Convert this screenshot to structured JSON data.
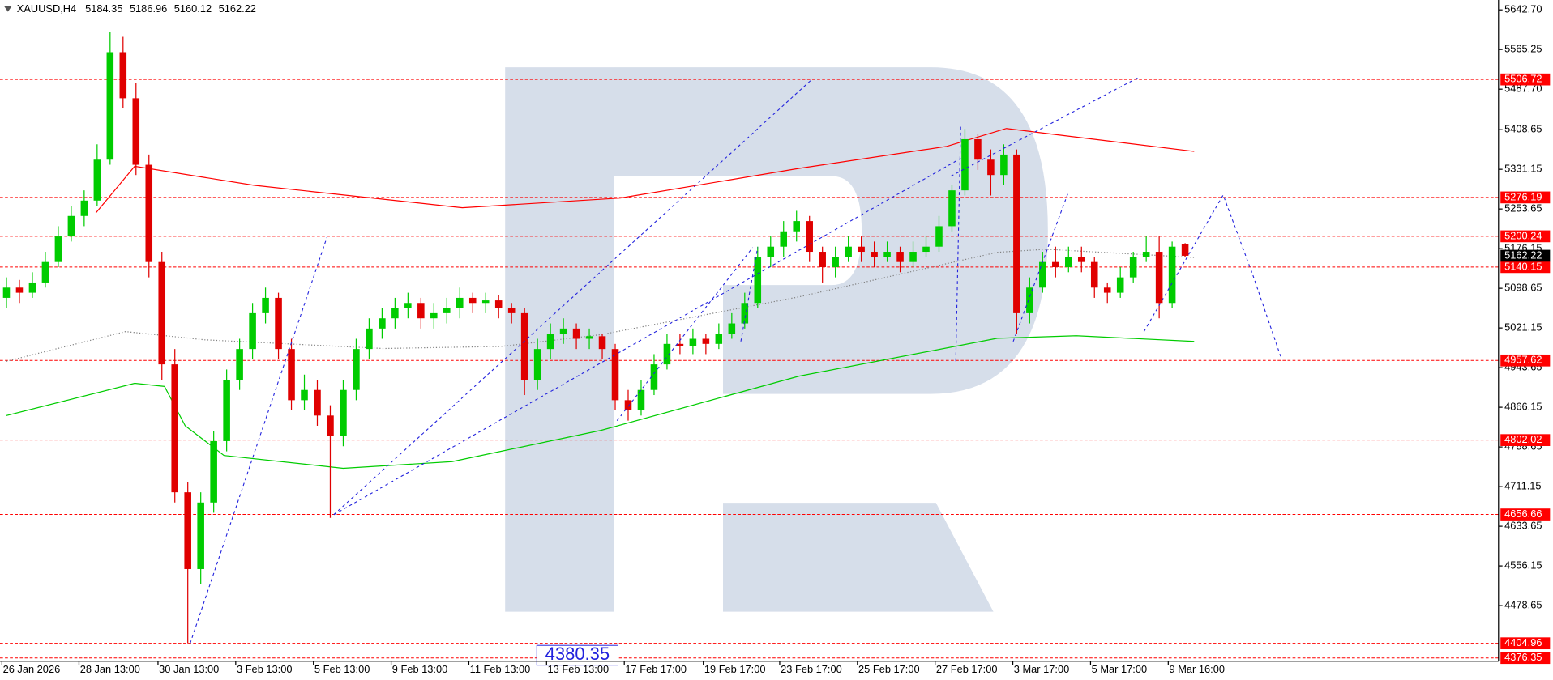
{
  "chart_data": {
    "type": "candlestick",
    "symbol": "XAUUSD,H4",
    "bull_color": "#00cc00",
    "bear_color": "#e00000",
    "candles": [
      [
        5080,
        5120,
        5060,
        5100
      ],
      [
        5100,
        5115,
        5070,
        5090
      ],
      [
        5090,
        5130,
        5080,
        5110
      ],
      [
        5110,
        5170,
        5100,
        5150
      ],
      [
        5150,
        5220,
        5140,
        5200
      ],
      [
        5200,
        5260,
        5190,
        5240
      ],
      [
        5240,
        5290,
        5220,
        5270
      ],
      [
        5270,
        5380,
        5260,
        5350
      ],
      [
        5350,
        5600,
        5340,
        5560
      ],
      [
        5560,
        5590,
        5450,
        5470
      ],
      [
        5470,
        5500,
        5320,
        5340
      ],
      [
        5340,
        5360,
        5120,
        5150
      ],
      [
        5150,
        5170,
        4920,
        4950
      ],
      [
        4950,
        4980,
        4680,
        4700
      ],
      [
        4700,
        4720,
        4405,
        4550
      ],
      [
        4550,
        4700,
        4520,
        4680
      ],
      [
        4680,
        4820,
        4660,
        4800
      ],
      [
        4800,
        4940,
        4780,
        4920
      ],
      [
        4920,
        5000,
        4900,
        4980
      ],
      [
        4980,
        5070,
        4960,
        5050
      ],
      [
        5050,
        5100,
        5030,
        5080
      ],
      [
        5080,
        5090,
        4960,
        4980
      ],
      [
        4980,
        5000,
        4860,
        4880
      ],
      [
        4880,
        4930,
        4860,
        4900
      ],
      [
        4900,
        4920,
        4830,
        4850
      ],
      [
        4850,
        4870,
        4650,
        4810
      ],
      [
        4810,
        4920,
        4790,
        4900
      ],
      [
        4900,
        5000,
        4880,
        4980
      ],
      [
        4980,
        5040,
        4960,
        5020
      ],
      [
        5020,
        5060,
        5000,
        5040
      ],
      [
        5040,
        5080,
        5020,
        5060
      ],
      [
        5060,
        5090,
        5040,
        5070
      ],
      [
        5070,
        5080,
        5020,
        5040
      ],
      [
        5040,
        5070,
        5020,
        5050
      ],
      [
        5050,
        5080,
        5030,
        5060
      ],
      [
        5060,
        5100,
        5040,
        5080
      ],
      [
        5080,
        5090,
        5050,
        5070
      ],
      [
        5070,
        5090,
        5050,
        5075
      ],
      [
        5075,
        5085,
        5040,
        5060
      ],
      [
        5060,
        5070,
        5030,
        5050
      ],
      [
        5050,
        5060,
        4890,
        4920
      ],
      [
        4920,
        5000,
        4900,
        4980
      ],
      [
        4980,
        5030,
        4960,
        5010
      ],
      [
        5010,
        5040,
        4990,
        5020
      ],
      [
        5020,
        5030,
        4980,
        5000
      ],
      [
        5000,
        5020,
        4980,
        5005
      ],
      [
        5005,
        5010,
        4960,
        4980
      ],
      [
        4980,
        4990,
        4860,
        4880
      ],
      [
        4880,
        4900,
        4840,
        4860
      ],
      [
        4860,
        4920,
        4850,
        4900
      ],
      [
        4900,
        4970,
        4890,
        4950
      ],
      [
        4950,
        5010,
        4940,
        4990
      ],
      [
        4990,
        5010,
        4970,
        4985
      ],
      [
        4985,
        5020,
        4970,
        5000
      ],
      [
        5000,
        5010,
        4970,
        4990
      ],
      [
        4990,
        5030,
        4980,
        5010
      ],
      [
        5010,
        5050,
        5000,
        5030
      ],
      [
        5030,
        5090,
        5020,
        5070
      ],
      [
        5070,
        5180,
        5060,
        5160
      ],
      [
        5160,
        5200,
        5140,
        5180
      ],
      [
        5180,
        5230,
        5160,
        5210
      ],
      [
        5210,
        5250,
        5190,
        5230
      ],
      [
        5230,
        5240,
        5150,
        5170
      ],
      [
        5170,
        5180,
        5110,
        5140
      ],
      [
        5140,
        5180,
        5120,
        5160
      ],
      [
        5160,
        5200,
        5150,
        5180
      ],
      [
        5180,
        5200,
        5150,
        5170
      ],
      [
        5170,
        5190,
        5140,
        5160
      ],
      [
        5160,
        5190,
        5150,
        5170
      ],
      [
        5170,
        5180,
        5130,
        5150
      ],
      [
        5150,
        5190,
        5140,
        5170
      ],
      [
        5170,
        5200,
        5160,
        5180
      ],
      [
        5180,
        5240,
        5170,
        5220
      ],
      [
        5220,
        5300,
        5210,
        5290
      ],
      [
        5290,
        5410,
        5280,
        5390
      ],
      [
        5390,
        5400,
        5330,
        5350
      ],
      [
        5350,
        5370,
        5280,
        5320
      ],
      [
        5320,
        5380,
        5300,
        5360
      ],
      [
        5360,
        5370,
        5010,
        5050
      ],
      [
        5050,
        5120,
        5030,
        5100
      ],
      [
        5100,
        5170,
        5090,
        5150
      ],
      [
        5150,
        5180,
        5120,
        5140
      ],
      [
        5140,
        5180,
        5130,
        5160
      ],
      [
        5160,
        5180,
        5130,
        5150
      ],
      [
        5150,
        5160,
        5080,
        5100
      ],
      [
        5100,
        5110,
        5070,
        5090
      ],
      [
        5090,
        5140,
        5080,
        5120
      ],
      [
        5120,
        5170,
        5110,
        5160
      ],
      [
        5160,
        5200,
        5150,
        5170
      ],
      [
        5170,
        5200,
        5040,
        5070
      ],
      [
        5070,
        5190,
        5060,
        5180
      ],
      [
        5184.35,
        5186.96,
        5160.12,
        5162.22
      ]
    ],
    "overlays": [
      {
        "color": "#ff0000",
        "style": "solid",
        "x": [
          6.9,
          9.9,
          19.1,
          35.2,
          47.4,
          61.2,
          72.6,
          77.2,
          81.0,
          91.7
        ],
        "values": [
          5246,
          5337,
          5300,
          5256,
          5275,
          5333,
          5376,
          5411,
          5399,
          5366
        ]
      },
      {
        "color": "#00cc00",
        "style": "solid",
        "x": [
          0,
          9.9,
          12.2,
          13.8,
          16.8,
          26,
          34.4,
          45.9,
          61.2,
          76.5,
          82.6,
          91.7
        ],
        "values": [
          4850,
          4913,
          4907,
          4830,
          4772,
          4747,
          4760,
          4821,
          4927,
          5001,
          5006,
          4995
        ]
      },
      {
        "color": "#808080",
        "style": "dotted",
        "x": [
          0,
          9.2,
          15.3,
          29.1,
          38.2,
          45.9,
          61.2,
          76.5,
          80.3,
          91.7
        ],
        "values": [
          4956,
          5014,
          4998,
          4981,
          4985,
          5008,
          5082,
          5169,
          5175,
          5159
        ]
      }
    ],
    "xlim": [
      -0.5,
      115.2
    ],
    "ylim": [
      4370,
      5662
    ],
    "yticks": [
      {
        "value": 5642.7,
        "label": "5642.70"
      },
      5565.25,
      {
        "value": 5487.7,
        "label": "5487.70"
      },
      5408.65,
      5331.15,
      5253.65,
      5176.15,
      5098.65,
      5021.15,
      4943.65,
      4866.15,
      4788.65,
      4711.15,
      4633.65,
      4556.15,
      4478.65
    ],
    "xticks": [
      {
        "value": -0.35,
        "label": "26 Jan 2026"
      },
      {
        "value": 5.6,
        "label": "28 Jan 13:00"
      },
      {
        "value": 11.7,
        "label": "30 Jan 13:00"
      },
      {
        "value": 17.7,
        "label": "3 Feb 13:00"
      },
      {
        "value": 23.7,
        "label": "5 Feb 13:00"
      },
      {
        "value": 29.7,
        "label": "9 Feb 13:00"
      },
      {
        "value": 35.7,
        "label": "11 Feb 13:00"
      },
      {
        "value": 41.7,
        "label": "13 Feb 13:00"
      },
      {
        "value": 47.7,
        "label": "17 Feb 17:00"
      },
      {
        "value": 53.8,
        "label": "19 Feb 17:00"
      },
      {
        "value": 59.7,
        "label": "23 Feb 17:00"
      },
      {
        "value": 65.7,
        "label": "25 Feb 17:00"
      },
      {
        "value": 71.7,
        "label": "27 Feb 17:00"
      },
      {
        "value": 77.7,
        "label": "3 Mar 17:00"
      },
      {
        "value": 83.7,
        "label": "5 Mar 17:00"
      },
      {
        "value": 89.7,
        "label": "9 Mar 16:00"
      }
    ],
    "levels": [
      5506.72,
      5276.19,
      5200.24,
      5140.15,
      4957.62,
      4802.02,
      4656.66,
      4404.96,
      4376.35
    ],
    "level_color": "#ff0000",
    "price_label": 4380.35
  }
}
